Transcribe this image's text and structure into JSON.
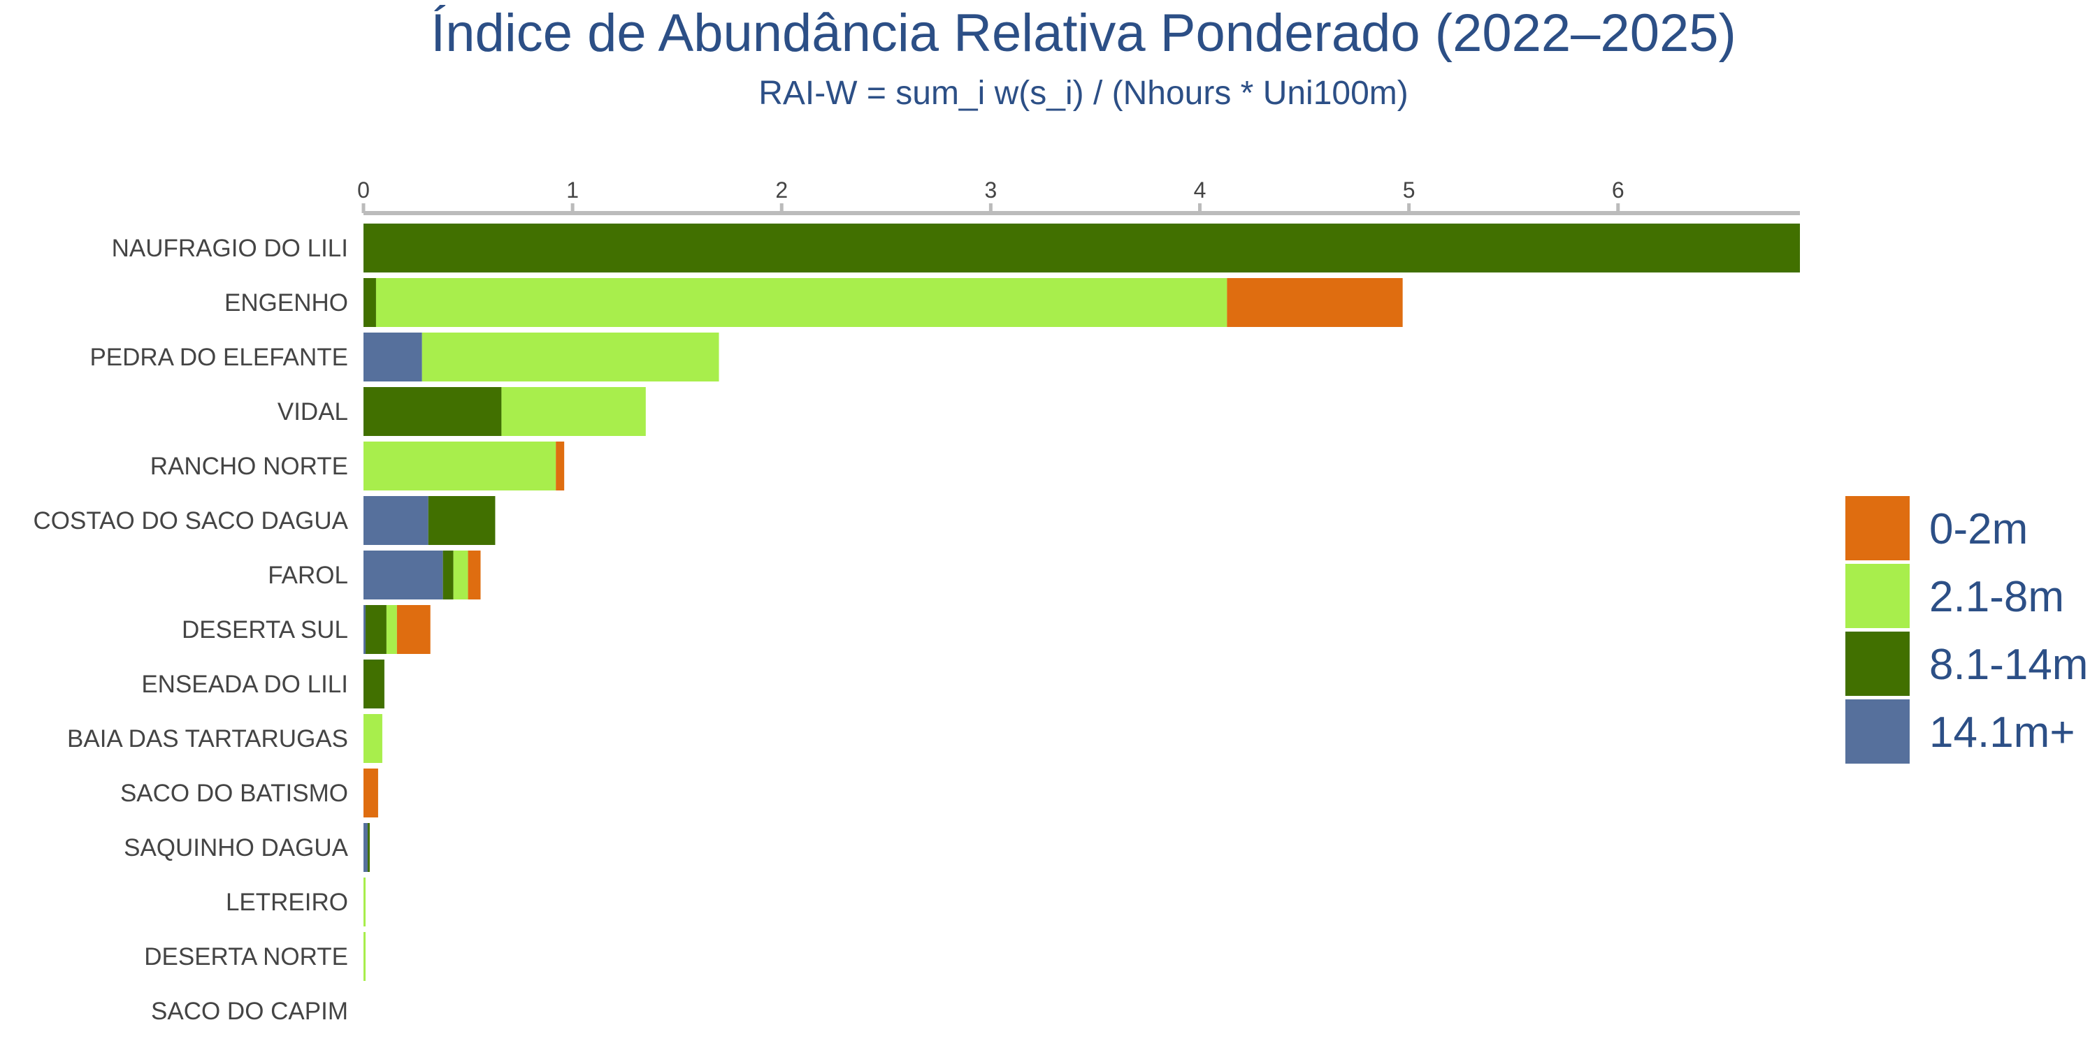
{
  "chart_data": {
    "type": "bar",
    "orientation": "horizontal",
    "stacked": true,
    "title": "Índice de Abundância Relativa Ponderado (2022–2025)",
    "subtitle": "RAI-W = sum_i w(s_i) / (Nhours * Uni100m)",
    "xlabel": "",
    "ylabel": "",
    "xlim": [
      0,
      6.87
    ],
    "x_ticks": [
      0,
      1,
      2,
      3,
      4,
      5,
      6
    ],
    "grid": false,
    "legend_position": "right",
    "categories": [
      "NAUFRAGIO DO LILI",
      "ENGENHO",
      "PEDRA DO ELEFANTE",
      "VIDAL",
      "RANCHO NORTE",
      "COSTAO DO SACO DAGUA",
      "FAROL",
      "DESERTA SUL",
      "ENSEADA DO LILI",
      "BAIA DAS TARTARUGAS",
      "SACO DO BATISMO",
      "SAQUINHO DAGUA",
      "LETREIRO",
      "DESERTA NORTE",
      "SACO DO CAPIM"
    ],
    "series": [
      {
        "name": "14.1m+",
        "color": "#56709c",
        "values": [
          0,
          0,
          0.28,
          0,
          0,
          0.31,
          0.38,
          0.01,
          0,
          0,
          0,
          0.02,
          0,
          0,
          0
        ]
      },
      {
        "name": "8.1-14m",
        "color": "#417000",
        "values": [
          6.87,
          0.06,
          0,
          0.66,
          0,
          0.32,
          0.05,
          0.1,
          0.1,
          0,
          0,
          0.01,
          0,
          0,
          0
        ]
      },
      {
        "name": "2.1-8m",
        "color": "#a8ee4c",
        "values": [
          0,
          4.07,
          1.42,
          0.69,
          0.92,
          0,
          0.07,
          0.05,
          0,
          0.09,
          0,
          0,
          0.01,
          0.01,
          0
        ]
      },
      {
        "name": "0-2m",
        "color": "#df6d10",
        "values": [
          0,
          0.84,
          0,
          0,
          0.04,
          0,
          0.06,
          0.16,
          0,
          0,
          0.07,
          0,
          0,
          0,
          0
        ]
      }
    ],
    "legend_order": [
      "0-2m",
      "2.1-8m",
      "8.1-14m",
      "14.1m+"
    ]
  }
}
